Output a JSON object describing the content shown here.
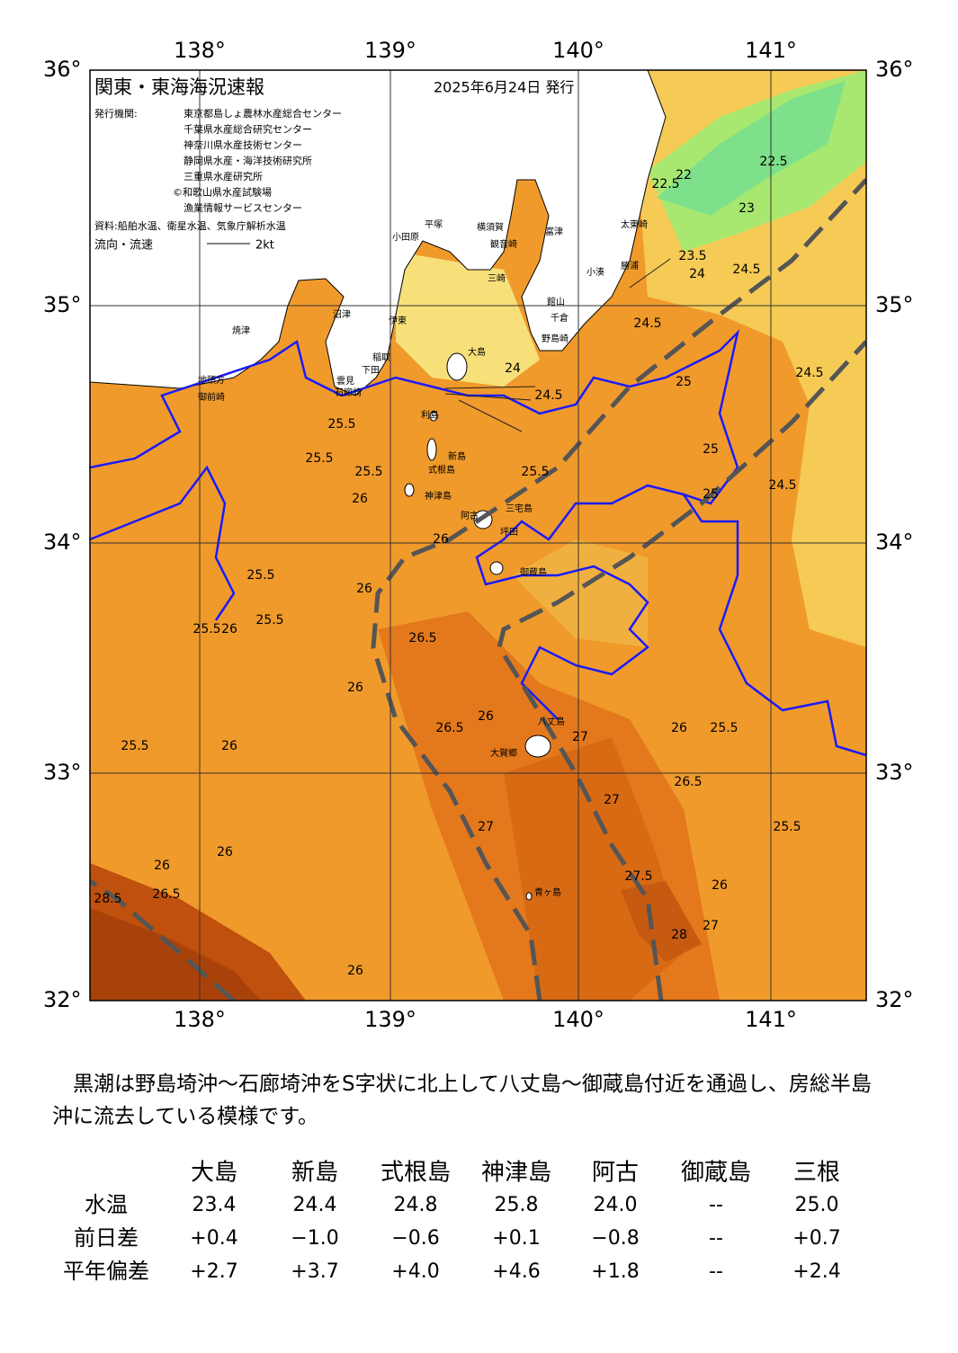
{
  "header": {
    "title": "関東・東海海況速報",
    "date": "2025年6月24日 発行",
    "issuer_label": "発行機関:",
    "issuers": [
      "東京都島しょ農林水産総合センター",
      "千葉県水産総合研究センター",
      "神奈川県水産技術センター",
      "静岡県水産・海洋技術研究所",
      "三重県水産研究所",
      "©和歌山県水産試験場",
      "漁業情報サービスセンター"
    ],
    "source": "資料:船舶水温、衛星水温、気象庁解析水温",
    "legend_label": "流向・流速",
    "legend_value": "2kt"
  },
  "map": {
    "lon_labels": [
      "138°",
      "139°",
      "140°",
      "141°"
    ],
    "lat_labels": [
      "36°",
      "35°",
      "34°",
      "33°",
      "32°"
    ],
    "places": [
      "大島",
      "利島",
      "新島",
      "式根島",
      "神津島",
      "阿古",
      "三宅島",
      "坪田",
      "御蔵島",
      "八丈島",
      "大賀郷",
      "青ヶ島",
      "太東崎",
      "勝浦",
      "小湊",
      "館山",
      "千倉",
      "野島崎",
      "富津",
      "横須賀",
      "観音崎",
      "平塚",
      "小田原",
      "三崎",
      "伊東",
      "稲取",
      "下田",
      "石廊崎",
      "雲見",
      "御前崎",
      "地頭方",
      "焼津",
      "沼津"
    ],
    "contour_labels": [
      "22.5",
      "22",
      "22.5",
      "23",
      "23.5",
      "24",
      "24.5",
      "24.5",
      "24.5",
      "24.5",
      "25",
      "24",
      "24.5",
      "25",
      "25",
      "25.5",
      "25.5",
      "25.5",
      "25.5",
      "26",
      "26",
      "25.5",
      "25.5",
      "26",
      "26",
      "26",
      "26.5",
      "26",
      "26.5",
      "26",
      "27",
      "27",
      "26.5",
      "27.5",
      "28",
      "27",
      "26",
      "25.5",
      "25.5",
      "26",
      "27",
      "28.5",
      "26.5",
      "26",
      "26",
      "25.5",
      "25.5",
      "26"
    ]
  },
  "summary": "黒潮は野島埼沖～石廊埼沖をS字状に北上して八丈島～御蔵島付近を通過し、房総半島沖に流去している模様です。",
  "table": {
    "columns": [
      "大島",
      "新島",
      "式根島",
      "神津島",
      "阿古",
      "御蔵島",
      "三根"
    ],
    "rows": [
      {
        "label": "水温",
        "values": [
          "23.4",
          "24.4",
          "24.8",
          "25.8",
          "24.0",
          "--",
          "25.0"
        ]
      },
      {
        "label": "前日差",
        "values": [
          "+0.4",
          "−1.0",
          "−0.6",
          "+0.1",
          "−0.8",
          "--",
          "+0.7"
        ]
      },
      {
        "label": "平年偏差",
        "values": [
          "+2.7",
          "+3.7",
          "+4.0",
          "+4.6",
          "+1.8",
          "--",
          "+2.4"
        ]
      }
    ]
  }
}
